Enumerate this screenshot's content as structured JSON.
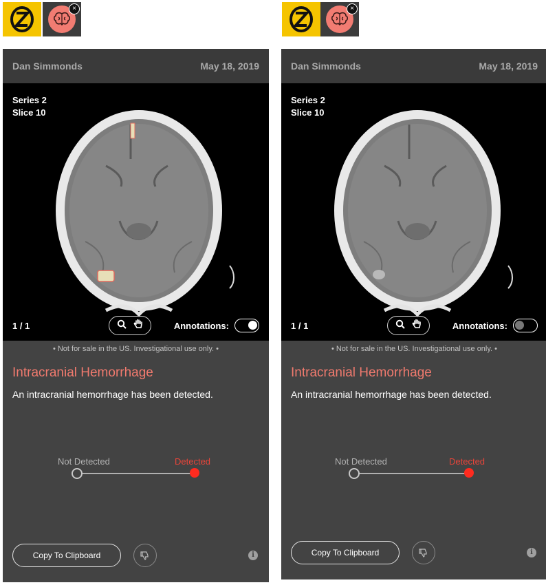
{
  "panels": [
    {
      "patient_name": "Dan Simmonds",
      "date": "May 18, 2019",
      "series": "Series 2",
      "slice": "Slice 10",
      "pager": "1 / 1",
      "annotations_label": "Annotations:",
      "annotations_on": true,
      "disclaimer": "• Not for sale in the US. Investigational use only. •",
      "finding_title": "Intracranial Hemorrhage",
      "finding_description": "An intracranial hemorrhage has been detected.",
      "slider_left_label": "Not Detected",
      "slider_right_label": "Detected",
      "slider_value": "Detected",
      "copy_button": "Copy To Clipboard"
    },
    {
      "patient_name": "Dan Simmonds",
      "date": "May 18, 2019",
      "series": "Series 2",
      "slice": "Slice 10",
      "pager": "1 / 1",
      "annotations_label": "Annotations:",
      "annotations_on": false,
      "disclaimer": "• Not for sale in the US. Investigational use only. •",
      "finding_title": "Intracranial Hemorrhage",
      "finding_description": "An intracranial hemorrhage has been detected.",
      "slider_left_label": "Not Detected",
      "slider_right_label": "Detected",
      "slider_value": "Detected",
      "copy_button": "Copy To Clipboard"
    }
  ],
  "icons": {
    "logo": "z-logo-icon",
    "ai_module": "brain-icon",
    "close": "close-icon",
    "zoom": "search-icon",
    "pan": "hand-icon",
    "feedback": "thumbs-down-icon",
    "info": "info-icon"
  },
  "colors": {
    "logo_bg": "#f5c400",
    "brain_bg": "#f27c72",
    "finding_title": "#f07a6e",
    "detected": "#ff2b1f",
    "panel_bg": "#434343",
    "header_bg": "#3a3a3a"
  }
}
